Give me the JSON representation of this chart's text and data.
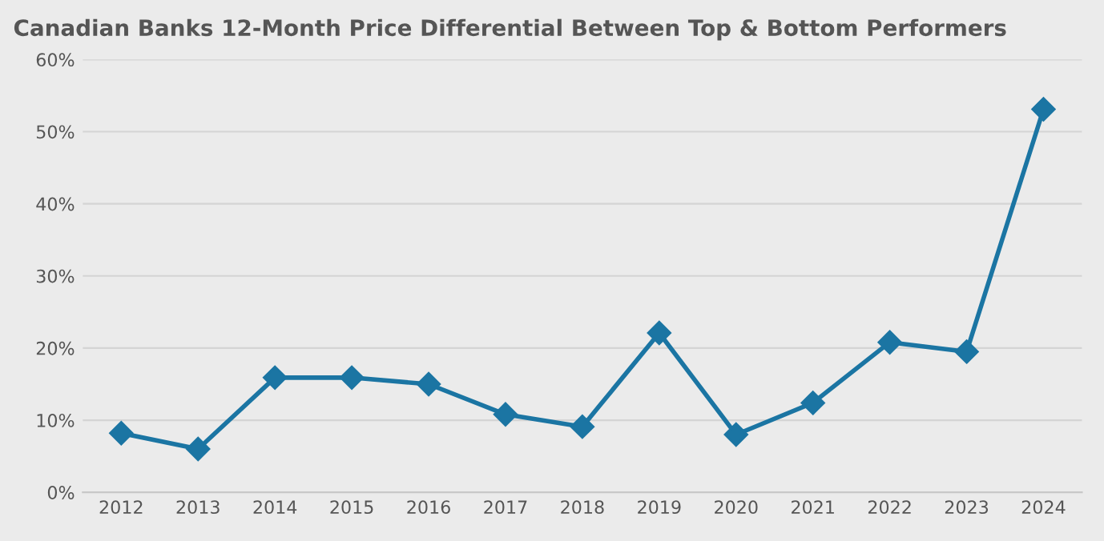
{
  "chart_data": {
    "type": "line",
    "title": "Canadian Banks 12-Month Price Differential Between Top & Bottom Performers",
    "categories": [
      "2012",
      "2013",
      "2014",
      "2015",
      "2016",
      "2017",
      "2018",
      "2019",
      "2020",
      "2021",
      "2022",
      "2023",
      "2024"
    ],
    "series": [
      {
        "color": "#1b75a3",
        "values": [
          8.2,
          6.0,
          15.9,
          15.9,
          15.0,
          10.8,
          9.1,
          22.1,
          8.0,
          12.4,
          20.8,
          19.5,
          53.1
        ]
      }
    ],
    "ylim": [
      0,
      60
    ],
    "yticks": [
      {
        "value": 0,
        "label": "0%"
      },
      {
        "value": 10,
        "label": "10%"
      },
      {
        "value": 20,
        "label": "20%"
      },
      {
        "value": 30,
        "label": "30%"
      },
      {
        "value": 40,
        "label": "40%"
      },
      {
        "value": 50,
        "label": "50%"
      },
      {
        "value": 60,
        "label": "60%"
      }
    ],
    "grid": "y",
    "marker": "diamond",
    "line_style": "solid"
  }
}
